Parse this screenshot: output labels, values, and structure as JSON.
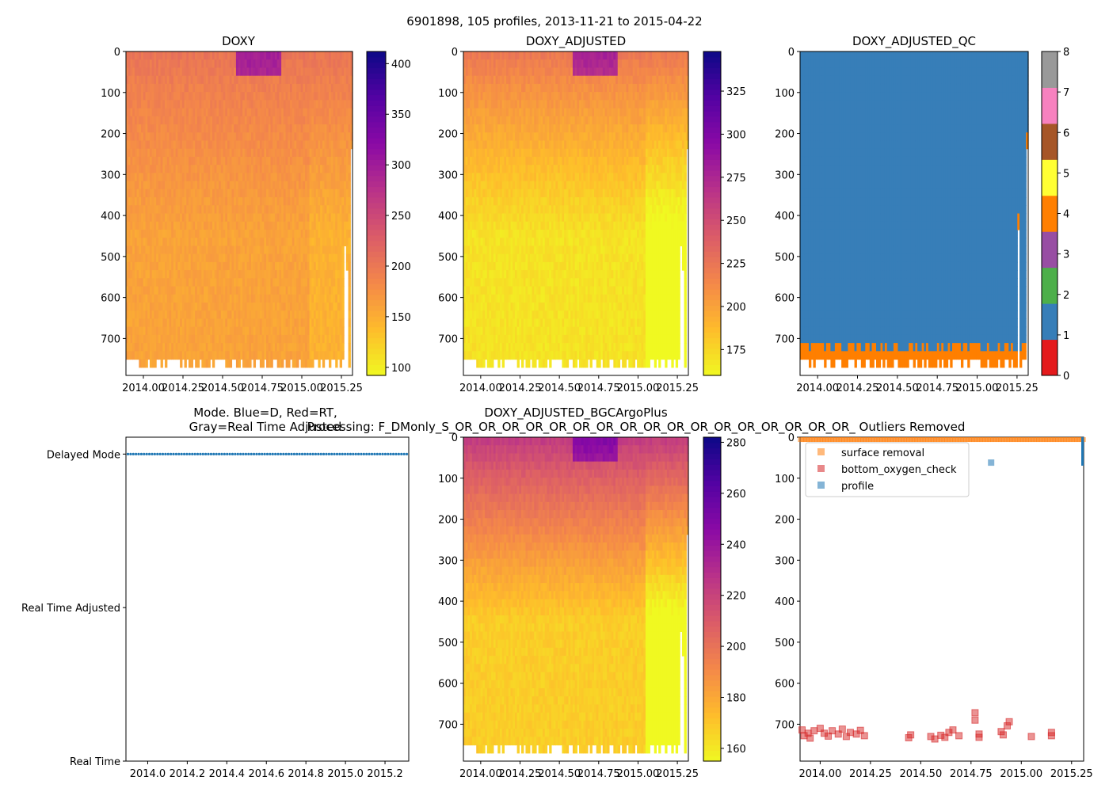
{
  "figure": {
    "suptitle": "6901898, 105 profiles, 2013-11-21 to 2015-04-22"
  },
  "chart_data": [
    {
      "id": "doxy",
      "type": "heatmap",
      "title": "DOXY",
      "ylim": [
        790,
        0
      ],
      "yticks": [
        0,
        100,
        200,
        300,
        400,
        500,
        600,
        700
      ],
      "xlim": [
        2013.89,
        2015.32
      ],
      "xticks": [
        2014.0,
        2014.25,
        2014.5,
        2014.75,
        2015.0,
        2015.25
      ],
      "xticklabels": [
        "2014.00",
        "2014.25",
        "2014.50",
        "2014.75",
        "2015.00",
        "2015.25"
      ],
      "colormap": "plasma_r",
      "clim": [
        92,
        412
      ],
      "colorbar_ticks": [
        100,
        150,
        200,
        250,
        300,
        350,
        400
      ],
      "surface_value": 205,
      "deep_value": 160
    },
    {
      "id": "doxy_adjusted",
      "type": "heatmap",
      "title": "DOXY_ADJUSTED",
      "ylim": [
        790,
        0
      ],
      "yticks": [
        0,
        100,
        200,
        300,
        400,
        500,
        600,
        700
      ],
      "xlim": [
        2013.89,
        2015.32
      ],
      "xticks": [
        2014.0,
        2014.25,
        2014.5,
        2014.75,
        2015.0,
        2015.25
      ],
      "xticklabels": [
        "2014.00",
        "2014.25",
        "2014.50",
        "2014.75",
        "2015.00",
        "2015.25"
      ],
      "colormap": "plasma_r",
      "clim": [
        160,
        348
      ],
      "colorbar_ticks": [
        175,
        200,
        225,
        250,
        275,
        300,
        325
      ],
      "surface_value": 225,
      "deep_value": 170
    },
    {
      "id": "doxy_adjusted_qc",
      "type": "heatmap",
      "title": "DOXY_ADJUSTED_QC",
      "ylim": [
        790,
        0
      ],
      "yticks": [
        0,
        100,
        200,
        300,
        400,
        500,
        600,
        700
      ],
      "xlim": [
        2013.89,
        2015.32
      ],
      "xticks": [
        2014.0,
        2014.25,
        2014.5,
        2014.75,
        2015.0,
        2015.25
      ],
      "xticklabels": [
        "2014.00",
        "2014.25",
        "2014.50",
        "2014.75",
        "2015.00",
        "2015.25"
      ],
      "clim": [
        0,
        8
      ],
      "colorbar_ticks": [
        0,
        1,
        2,
        3,
        4,
        5,
        6,
        7,
        8
      ],
      "qc_colors": [
        "#e41a1c",
        "#377eb8",
        "#4daf4a",
        "#984ea3",
        "#ff7f00",
        "#ffff33",
        "#a65628",
        "#f781bf",
        "#999999"
      ],
      "main_flag": 1,
      "bottom_flag": 4
    },
    {
      "id": "mode",
      "type": "scatter",
      "title": "Mode. Blue=D, Red=RT,",
      "subtitle": "Gray=Real Time Adjusted",
      "yticks": [
        0,
        1,
        2
      ],
      "yticklabels": [
        "Real Time",
        "Real Time Adjusted",
        "Delayed Mode"
      ],
      "ylim": [
        0,
        2.11
      ],
      "xlim": [
        2013.89,
        2015.32
      ],
      "xticks": [
        2014.0,
        2014.2,
        2014.4,
        2014.6,
        2014.8,
        2015.0,
        2015.2
      ],
      "xticklabels": [
        "2014.0",
        "2014.2",
        "2014.4",
        "2014.6",
        "2014.8",
        "2015.0",
        "2015.2"
      ],
      "series": [
        {
          "name": "Delayed Mode",
          "value": 2,
          "color": "#1f77b4",
          "count": 105
        }
      ]
    },
    {
      "id": "doxy_bgc",
      "type": "heatmap",
      "title": "DOXY_ADJUSTED_BGCArgoPlus",
      "subtitle": "Processing: F_DMonly_S_OR_OR_OR_OR_OR_OR_OR_OR_OR_OR_OR_OR_OR_OR_OR_OR_OR_ Outliers Removed",
      "ylim": [
        790,
        0
      ],
      "yticks": [
        0,
        100,
        200,
        300,
        400,
        500,
        600,
        700
      ],
      "xlim": [
        2013.89,
        2015.32
      ],
      "xticks": [
        2014.0,
        2014.25,
        2014.5,
        2014.75,
        2015.0,
        2015.25
      ],
      "xticklabels": [
        "2014.00",
        "2014.25",
        "2014.50",
        "2014.75",
        "2015.00",
        "2015.25"
      ],
      "colormap": "plasma_r",
      "clim": [
        155,
        282
      ],
      "colorbar_ticks": [
        160,
        180,
        200,
        220,
        240,
        260,
        280
      ],
      "surface_value": 225,
      "deep_value": 168
    },
    {
      "id": "outliers",
      "type": "scatter",
      "ylim": [
        790,
        0
      ],
      "yticks": [
        0,
        100,
        200,
        300,
        400,
        500,
        600,
        700
      ],
      "xlim": [
        2013.9,
        2015.31
      ],
      "xticks": [
        2014.0,
        2014.25,
        2014.5,
        2014.75,
        2015.0,
        2015.25
      ],
      "xticklabels": [
        "2014.00",
        "2014.25",
        "2014.50",
        "2014.75",
        "2015.00",
        "2015.25"
      ],
      "legend_position": "upper-left",
      "series": [
        {
          "name": "surface removal",
          "color": "#ff7f0e",
          "depth": 2,
          "note": "one square per profile along the surface"
        },
        {
          "name": "bottom_oxygen_check",
          "color": "#d62728",
          "points": [
            [
              2013.91,
              714
            ],
            [
              2013.92,
              728
            ],
            [
              2013.94,
              722
            ],
            [
              2013.95,
              734
            ],
            [
              2013.97,
              716
            ],
            [
              2014.0,
              710
            ],
            [
              2014.02,
              722
            ],
            [
              2014.04,
              729
            ],
            [
              2014.06,
              716
            ],
            [
              2014.09,
              724
            ],
            [
              2014.11,
              712
            ],
            [
              2014.13,
              730
            ],
            [
              2014.15,
              720
            ],
            [
              2014.18,
              724
            ],
            [
              2014.2,
              715
            ],
            [
              2014.22,
              728
            ],
            [
              2014.44,
              733
            ],
            [
              2014.45,
              726
            ],
            [
              2014.55,
              730
            ],
            [
              2014.57,
              736
            ],
            [
              2014.6,
              727
            ],
            [
              2014.62,
              732
            ],
            [
              2014.64,
              720
            ],
            [
              2014.66,
              714
            ],
            [
              2014.69,
              728
            ],
            [
              2014.77,
              672
            ],
            [
              2014.77,
              690
            ],
            [
              2014.79,
              732
            ],
            [
              2014.79,
              724
            ],
            [
              2014.9,
              718
            ],
            [
              2014.91,
              726
            ],
            [
              2014.93,
              704
            ],
            [
              2014.94,
              694
            ],
            [
              2015.05,
              730
            ],
            [
              2015.15,
              728
            ],
            [
              2015.15,
              720
            ]
          ]
        },
        {
          "name": "profile",
          "color": "#1f77b4",
          "points": [
            [
              2014.85,
              62
            ]
          ]
        }
      ]
    }
  ]
}
